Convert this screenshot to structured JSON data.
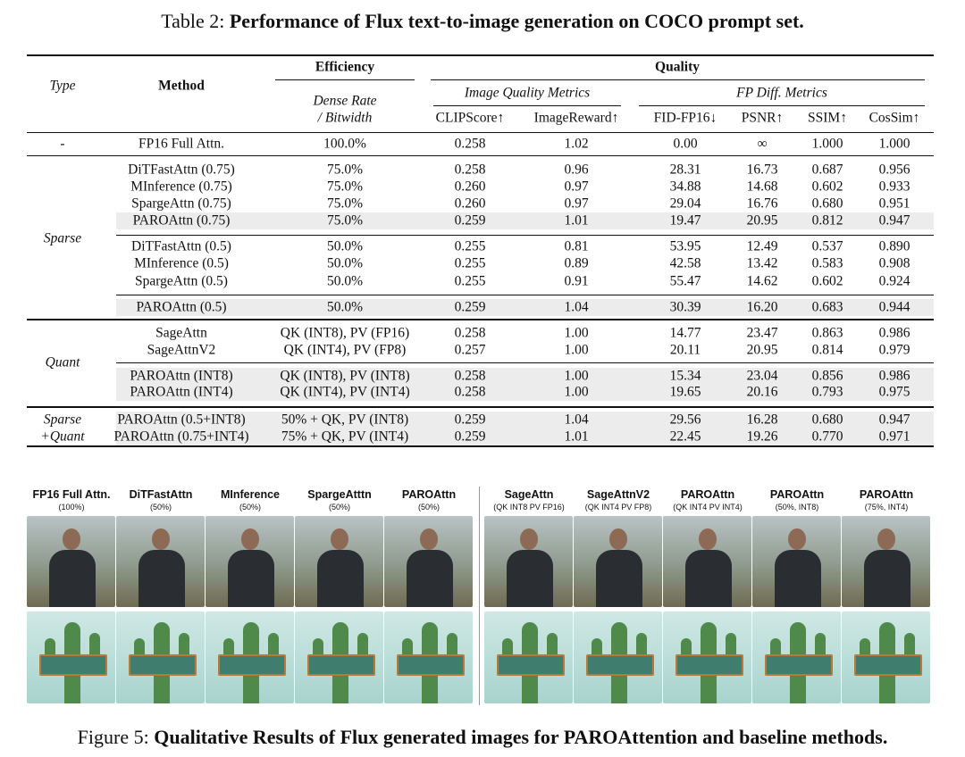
{
  "table": {
    "caption_prefix": "Table 2:",
    "caption": "Performance of Flux text-to-image generation on COCO prompt set.",
    "header": {
      "type": "Type",
      "method": "Method",
      "efficiency": "Efficiency",
      "quality": "Quality",
      "image_quality": "Image Quality Metrics",
      "fp_diff": "FP Diff. Metrics",
      "dense_rate": "Dense Rate",
      "bitwidth": "/ Bitwidth",
      "columns": [
        "CLIPScore↑",
        "ImageReward↑",
        "FID-FP16↓",
        "PSNR↑",
        "SSIM↑",
        "CosSim↑"
      ]
    },
    "sections": [
      {
        "type": [
          "-"
        ],
        "groups": [
          [
            {
              "cells": [
                "FP16 Full Attn.",
                "100.0%",
                "0.258",
                "1.02",
                "0.00",
                "∞",
                "1.000",
                "1.000"
              ]
            }
          ]
        ]
      },
      {
        "type": [
          "Sparse"
        ],
        "groups": [
          [
            {
              "cells": [
                "DiTFastAttn (0.75)",
                "75.0%",
                "0.258",
                "0.96",
                "28.31",
                "16.73",
                "0.687",
                "0.956"
              ]
            },
            {
              "cells": [
                "MInference (0.75)",
                "75.0%",
                "0.260",
                "0.97",
                "34.88",
                "14.68",
                "0.602",
                "0.933"
              ]
            },
            {
              "cells": [
                "SpargeAttn (0.75)",
                "75.0%",
                "0.260",
                "0.97",
                "29.04",
                "16.76",
                "0.680",
                "0.951"
              ]
            },
            {
              "cells": [
                "PAROAttn (0.75)",
                "75.0%",
                "0.259",
                "1.01",
                "19.47",
                "20.95",
                "0.812",
                "0.947"
              ],
              "highlighted": true
            }
          ],
          [
            {
              "cells": [
                "DiTFastAttn (0.5)",
                "50.0%",
                "0.255",
                "0.81",
                "53.95",
                "12.49",
                "0.537",
                "0.890"
              ]
            },
            {
              "cells": [
                "MInference (0.5)",
                "50.0%",
                "0.255",
                "0.89",
                "42.58",
                "13.42",
                "0.583",
                "0.908"
              ]
            },
            {
              "cells": [
                "SpargeAttn (0.5)",
                "50.0%",
                "0.255",
                "0.91",
                "55.47",
                "14.62",
                "0.602",
                "0.924"
              ]
            }
          ],
          [
            {
              "cells": [
                "PAROAttn (0.5)",
                "50.0%",
                "0.259",
                "1.04",
                "30.39",
                "16.20",
                "0.683",
                "0.944"
              ],
              "highlighted": true
            }
          ]
        ]
      },
      {
        "type": [
          "Quant"
        ],
        "groups": [
          [
            {
              "cells": [
                "SageAttn",
                "QK (INT8), PV (FP16)",
                "0.258",
                "1.00",
                "14.77",
                "23.47",
                "0.863",
                "0.986"
              ]
            },
            {
              "cells": [
                "SageAttnV2",
                "QK (INT4), PV (FP8)",
                "0.257",
                "1.00",
                "20.11",
                "20.95",
                "0.814",
                "0.979"
              ]
            }
          ],
          [
            {
              "cells": [
                "PAROAttn (INT8)",
                "QK (INT8), PV (INT8)",
                "0.258",
                "1.00",
                "15.34",
                "23.04",
                "0.856",
                "0.986"
              ],
              "highlighted": true
            },
            {
              "cells": [
                "PAROAttn (INT4)",
                "QK (INT4), PV (INT4)",
                "0.258",
                "1.00",
                "19.65",
                "20.16",
                "0.793",
                "0.975"
              ],
              "highlighted": true
            }
          ]
        ]
      },
      {
        "type": [
          "Sparse",
          "+Quant"
        ],
        "groups": [
          [
            {
              "cells": [
                "PAROAttn (0.5+INT8)",
                "50% + QK, PV (INT8)",
                "0.259",
                "1.04",
                "29.56",
                "16.28",
                "0.680",
                "0.947"
              ],
              "highlighted": true
            },
            {
              "cells": [
                "PAROAttn (0.75+INT4)",
                "75% + QK, PV (INT4)",
                "0.259",
                "1.01",
                "22.45",
                "19.26",
                "0.770",
                "0.971"
              ],
              "highlighted": true
            }
          ]
        ]
      }
    ]
  },
  "figure": {
    "caption_prefix": "Figure 5:",
    "caption": "Qualitative Results of Flux generated images for PAROAttention and baseline methods.",
    "panels": [
      {
        "columns": [
          {
            "title": "FP16 Full Attn.",
            "note": "(100%)"
          },
          {
            "title": "DiTFastAttn",
            "note": "(50%)"
          },
          {
            "title": "MInference",
            "note": "(50%)"
          },
          {
            "title": "SpargeAtttn",
            "note": "(50%)"
          },
          {
            "title": "PAROAttn",
            "note": "(50%)"
          }
        ]
      },
      {
        "columns": [
          {
            "title": "SageAttn",
            "note": "(QK INT8 PV FP16)"
          },
          {
            "title": "SageAttnV2",
            "note": "(QK INT4 PV FP8)"
          },
          {
            "title": "PAROAttn",
            "note": "(QK INT4 PV INT4)"
          },
          {
            "title": "PAROAttn",
            "note": "(50%, INT8)"
          },
          {
            "title": "PAROAttn",
            "note": "(75%, INT4)"
          }
        ]
      }
    ]
  }
}
